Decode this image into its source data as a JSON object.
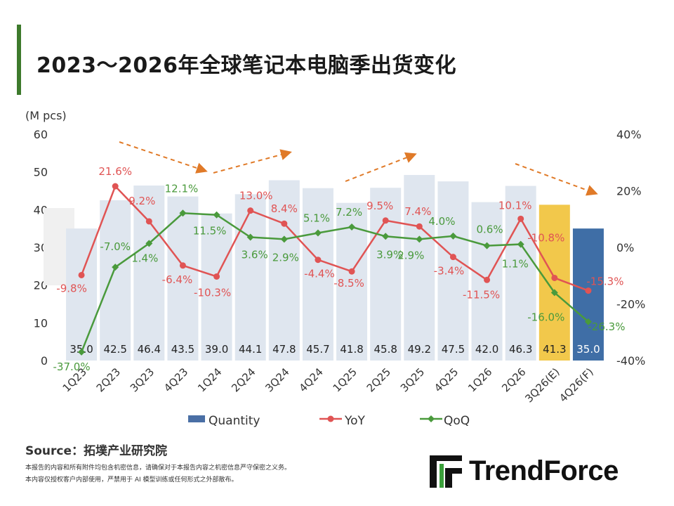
{
  "title": "2023～2026年全球笔记本电脑季出货变化",
  "colors": {
    "accent": "#3d7a2c",
    "quantity": "#4a6fa5",
    "quantity_light": "#dfe6ef",
    "estimate": "#f2c84b",
    "forecast": "#3f6ea6",
    "yoy": "#e05454",
    "qoq": "#4a9a3c",
    "trend": "#e07a28"
  },
  "source": "Source：拓墣产业研究院",
  "notes": [
    "本报告的内容和所有附件均包含机密信息，请确保对于本报告内容之机密信息严守保密之义务。",
    "本内容仅授权客户内部使用，严禁用于 AI 模型训练或任何形式之外部散布。"
  ],
  "brand": "TrendForce",
  "chart_data": {
    "type": "bar",
    "unit_label": "(M pcs)",
    "categories": [
      "1Q23",
      "2Q23",
      "3Q23",
      "4Q23",
      "1Q24",
      "2Q24",
      "3Q24",
      "4Q24",
      "1Q25",
      "2Q25",
      "3Q25",
      "4Q25",
      "1Q26",
      "2Q26",
      "3Q26(E)",
      "4Q26(F)"
    ],
    "y_left": {
      "min": 0,
      "max": 60,
      "ticks": [
        0,
        10,
        20,
        30,
        40,
        50,
        60
      ]
    },
    "y_right": {
      "min": -40,
      "max": 40,
      "ticks": [
        "-40%",
        "-20%",
        "0%",
        "20%",
        "40%"
      ],
      "tick_values": [
        -40,
        -20,
        0,
        20,
        40
      ]
    },
    "series": [
      {
        "name": "Quantity",
        "type": "bar",
        "values": [
          35.0,
          42.5,
          46.4,
          43.5,
          39.0,
          44.1,
          47.8,
          45.7,
          41.8,
          45.8,
          49.2,
          47.5,
          42.0,
          46.3,
          41.3,
          35.0
        ],
        "labels": [
          "35.0",
          "42.5",
          "46.4",
          "43.5",
          "39.0",
          "44.1",
          "47.8",
          "45.7",
          "41.8",
          "45.8",
          "49.2",
          "47.5",
          "42.0",
          "46.3",
          "41.3",
          "35.0"
        ]
      },
      {
        "name": "YoY",
        "type": "line",
        "axis": "right",
        "values": [
          -9.8,
          21.6,
          9.2,
          -6.4,
          -10.3,
          13.0,
          8.4,
          -4.4,
          -8.5,
          9.5,
          7.4,
          -3.4,
          -11.5,
          10.1,
          -10.8,
          -15.3
        ],
        "labels": [
          "-9.8%",
          "21.6%",
          "9.2%",
          "-6.4%",
          "-10.3%",
          "13.0%",
          "8.4%",
          "-4.4%",
          "-8.5%",
          "9.5%",
          "7.4%",
          "-3.4%",
          "-11.5%",
          "10.1%",
          "-10.8%",
          "-15.3%"
        ]
      },
      {
        "name": "QoQ",
        "type": "line",
        "axis": "right",
        "values": [
          -37.0,
          -7.0,
          1.4,
          12.1,
          11.5,
          3.6,
          2.9,
          5.1,
          7.2,
          3.9,
          2.9,
          4.0,
          0.6,
          1.1,
          -16.0,
          -26.3
        ],
        "labels": [
          "-37.0%",
          "-7.0%",
          "1.4%",
          "12.1%",
          "11.5%",
          "3.6%",
          "2.9%",
          "5.1%",
          "7.2%",
          "3.9%",
          "2.9%",
          "4.0%",
          "0.6%",
          "1.1%",
          "-16.0%",
          "-26.3%"
        ]
      }
    ],
    "legend": [
      "Quantity",
      "YoY",
      "QoQ"
    ],
    "legend_position": "bottom"
  }
}
